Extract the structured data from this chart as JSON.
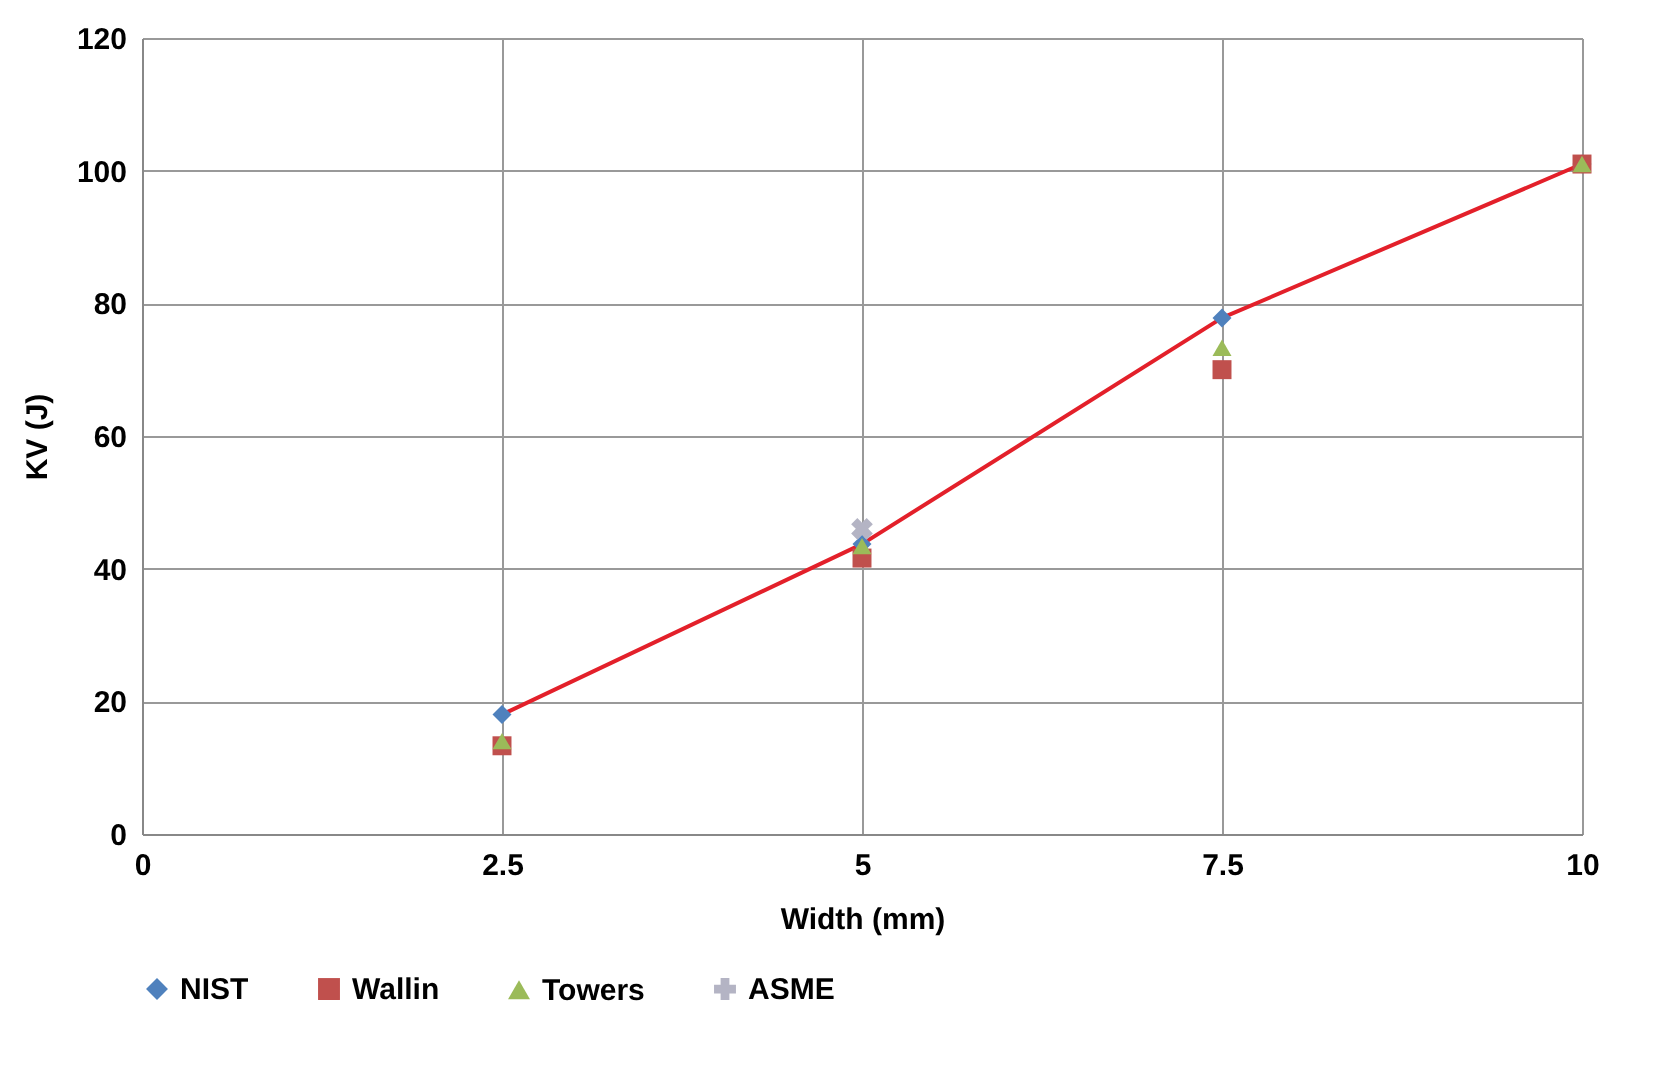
{
  "chart_data": {
    "type": "scatter",
    "xlabel": "Width (mm)",
    "ylabel": "KV (J)",
    "x": [
      2.5,
      5,
      7.5,
      10
    ],
    "series": [
      {
        "name": "NIST",
        "type": "line",
        "color": "#e3202a",
        "colors": [
          "#4f81bd",
          "#4f81bd",
          "#4f81bd",
          "#4f81bd"
        ],
        "marker": "diamond",
        "values": [
          18,
          43.7,
          77.8,
          101
        ]
      },
      {
        "name": "Wallin",
        "color": "#c0504d",
        "marker": "square",
        "values": [
          13.3,
          41.6,
          70,
          101
        ]
      },
      {
        "name": "Towers",
        "color": "#9bbb59",
        "marker": "triangle",
        "values": [
          14,
          43.4,
          73.3,
          101
        ]
      },
      {
        "name": "ASME",
        "color": "#b4b4c4",
        "marker": "cross",
        "values": [
          null,
          46,
          null,
          null
        ]
      }
    ],
    "xlim": [
      0,
      10
    ],
    "xticks": [
      0,
      2.5,
      5,
      7.5,
      10
    ],
    "ylim": [
      0,
      120
    ],
    "yticks": [
      0,
      20,
      40,
      60,
      80,
      100,
      120
    ],
    "grid": true,
    "legend": "bottom"
  }
}
